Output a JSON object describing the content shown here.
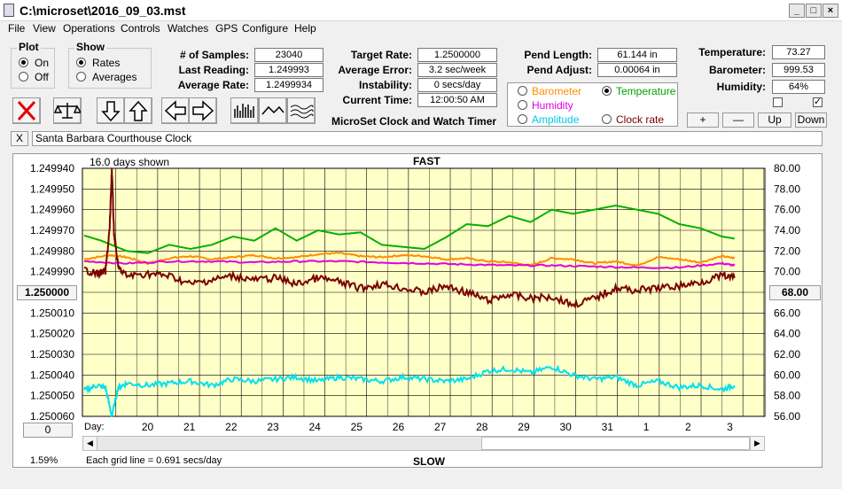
{
  "window": {
    "title": "C:\\microset\\2016_09_03.mst"
  },
  "menu": [
    "File",
    "View",
    "Operations",
    "Controls",
    "Watches",
    "GPS",
    "Configure",
    "Help"
  ],
  "plot_group": {
    "title": "Plot",
    "options": [
      "On",
      "Off"
    ],
    "selected": "On"
  },
  "show_group": {
    "title": "Show",
    "options": [
      "Rates",
      "Averages"
    ],
    "selected": "Rates"
  },
  "stats": {
    "samples_label": "# of Samples:",
    "samples": "23040",
    "last_reading_label": "Last Reading:",
    "last_reading": "1.249993",
    "average_rate_label": "Average Rate:",
    "average_rate": "1.2499934",
    "target_rate_label": "Target Rate:",
    "target_rate": "1.2500000",
    "average_error_label": "Average Error:",
    "average_error": "3.2 sec/week",
    "instability_label": "Instability:",
    "instability": "0 secs/day",
    "current_time_label": "Current Time:",
    "current_time": "12:00:50 AM",
    "pend_length_label": "Pend Length:",
    "pend_length": "61.144 in",
    "pend_adjust_label": "Pend Adjust:",
    "pend_adjust": "0.00064 in",
    "temperature_label": "Temperature:",
    "temperature": "73.27",
    "barometer_label": "Barometer:",
    "barometer": "999.53",
    "humidity_label": "Humidity:",
    "humidity": "64%"
  },
  "brand": "MicroSet Clock and Watch Timer",
  "aux_select": {
    "options": [
      {
        "label": "Barometer",
        "color": "#ff8c00"
      },
      {
        "label": "Temperature",
        "color": "#00a000"
      },
      {
        "label": "Humidity",
        "color": "#e000e0"
      },
      {
        "label": "Amplitude",
        "color": "#00c8e8"
      },
      {
        "label": "Clock rate",
        "color": "#7a0000"
      }
    ],
    "selected": "Temperature"
  },
  "aux_buttons": {
    "plus": "+",
    "minus": "—",
    "up": "Up",
    "down": "Down"
  },
  "checkboxes": [
    false,
    true
  ],
  "toolbar_icons": [
    "close-red-x-icon",
    "balance-scale-icon",
    "arrow-down-icon",
    "arrow-up-icon",
    "arrow-left-icon",
    "arrow-right-icon",
    "bar-graph-icon",
    "line-graph-icon",
    "wave-graph-icon"
  ],
  "clock_name": {
    "close": "X",
    "value": "Santa Barbara Courthouse Clock"
  },
  "chart_data": {
    "type": "line",
    "top_label": "FAST",
    "bottom_label": "SLOW",
    "days_shown": "16.0 days shown",
    "grid_note": "Each grid line = 0.691 secs/day",
    "day_label": "Day:",
    "left_ticks": [
      "1.249940",
      "1.249950",
      "1.249960",
      "1.249970",
      "1.249980",
      "1.249990",
      "1.250000",
      "1.250010",
      "1.250020",
      "1.250030",
      "1.250040",
      "1.250050",
      "1.250060"
    ],
    "left_ylim": [
      1.24994,
      1.25006
    ],
    "right_ticks": [
      "80.00",
      "78.00",
      "76.00",
      "74.00",
      "72.00",
      "70.00",
      "68.00",
      "66.00",
      "64.00",
      "62.00",
      "60.00",
      "58.00",
      "56.00"
    ],
    "right_ylim": [
      56,
      80
    ],
    "x_labels": [
      "20",
      "21",
      "22",
      "23",
      "24",
      "25",
      "26",
      "27",
      "28",
      "29",
      "30",
      "31",
      "1",
      "2",
      "3"
    ],
    "center_left_button": "1.250000",
    "center_right_button": "68.00",
    "bottom_left_button": "0",
    "percent": "1.59%",
    "series": [
      {
        "name": "Temperature",
        "color": "#00b000",
        "axis": "right",
        "x": [
          0,
          0.4,
          1,
          1.5,
          2,
          2.5,
          3,
          3.5,
          4,
          4.5,
          5,
          5.5,
          6,
          6.5,
          7,
          7.5,
          8,
          8.5,
          9,
          9.5,
          10,
          10.5,
          11,
          11.5,
          12,
          12.5,
          13,
          13.5,
          14,
          14.5,
          15,
          15.3
        ],
        "y": [
          73.5,
          73.0,
          72.0,
          71.8,
          72.6,
          72.2,
          72.6,
          73.4,
          73.0,
          74.2,
          73.0,
          74.0,
          73.6,
          73.8,
          72.6,
          72.4,
          72.2,
          73.3,
          74.6,
          74.4,
          75.4,
          74.8,
          76.0,
          75.6,
          76.0,
          76.4,
          76.0,
          75.6,
          74.6,
          74.2,
          73.4,
          73.2
        ]
      },
      {
        "name": "Barometer",
        "color": "#ff8c00",
        "axis": "right",
        "x": [
          0,
          0.6,
          1,
          1.5,
          2,
          2.5,
          3,
          3.5,
          4,
          4.5,
          5,
          5.5,
          6,
          6.5,
          7,
          7.5,
          8,
          8.5,
          9,
          9.5,
          10,
          10.5,
          11,
          11.5,
          12,
          12.5,
          13,
          13.5,
          14,
          14.5,
          15,
          15.3
        ],
        "y": [
          71.2,
          71.6,
          71.4,
          70.8,
          71.3,
          71.5,
          71.2,
          71.4,
          71.6,
          71.3,
          71.4,
          71.7,
          71.8,
          71.5,
          71.4,
          71.6,
          71.5,
          71.2,
          71.3,
          71.0,
          70.9,
          70.6,
          71.3,
          71.2,
          70.8,
          71.0,
          70.6,
          71.4,
          71.2,
          70.9,
          71.5,
          71.3
        ]
      },
      {
        "name": "Humidity",
        "color": "#e000e0",
        "axis": "right",
        "x": [
          0,
          1,
          2,
          3,
          4,
          5,
          6,
          7,
          8,
          9,
          10,
          11,
          12,
          13,
          14,
          15,
          15.3
        ],
        "y": [
          71.0,
          70.8,
          71.0,
          71.0,
          70.9,
          71.0,
          71.0,
          70.9,
          70.8,
          70.7,
          70.6,
          70.6,
          70.5,
          70.4,
          70.4,
          70.8,
          70.6
        ]
      },
      {
        "name": "Amplitude",
        "color": "#00e0f0",
        "axis": "right",
        "x": [
          0,
          0.3,
          0.5,
          0.65,
          0.8,
          1,
          1.5,
          2,
          2.5,
          3,
          3.5,
          4,
          4.5,
          5,
          5.5,
          6,
          6.5,
          7,
          7.5,
          8,
          8.5,
          9,
          9.5,
          10,
          10.5,
          11,
          11.5,
          12,
          12.5,
          13,
          13.5,
          14,
          14.5,
          15,
          15.3
        ],
        "y": [
          58.5,
          59.0,
          58.8,
          56.0,
          58.8,
          59.2,
          59.0,
          59.2,
          59.4,
          59.0,
          59.6,
          59.4,
          59.6,
          59.8,
          59.4,
          59.8,
          59.6,
          59.4,
          59.8,
          59.6,
          59.4,
          59.6,
          60.4,
          60.6,
          60.2,
          60.8,
          60.0,
          59.6,
          59.8,
          59.0,
          59.4,
          58.8,
          59.0,
          58.6,
          59.0
        ]
      },
      {
        "name": "Clock rate",
        "color": "#7a0000",
        "axis": "left",
        "x": [
          0,
          0.3,
          0.5,
          0.6,
          0.65,
          0.7,
          0.8,
          1,
          1.5,
          2,
          2.5,
          3,
          3.5,
          4,
          4.5,
          5,
          5.5,
          6,
          6.5,
          7,
          7.5,
          8,
          8.5,
          9,
          9.5,
          10,
          10.5,
          11,
          11.5,
          12,
          12.5,
          13,
          13.5,
          14,
          14.5,
          15,
          15.3
        ],
        "y": [
          1.249989,
          1.249991,
          1.24999,
          1.249969,
          1.24994,
          1.249971,
          1.249988,
          1.249992,
          1.249991,
          1.249992,
          1.249996,
          1.249994,
          1.249992,
          1.249994,
          1.249993,
          1.249996,
          1.249993,
          1.249995,
          1.249998,
          1.249996,
          1.249998,
          1.25,
          1.249997,
          1.25,
          1.250004,
          1.250001,
          1.250003,
          1.250002,
          1.250006,
          1.250003,
          1.249998,
          1.249999,
          1.249998,
          1.249997,
          1.249995,
          1.249992,
          1.249993
        ]
      }
    ]
  }
}
